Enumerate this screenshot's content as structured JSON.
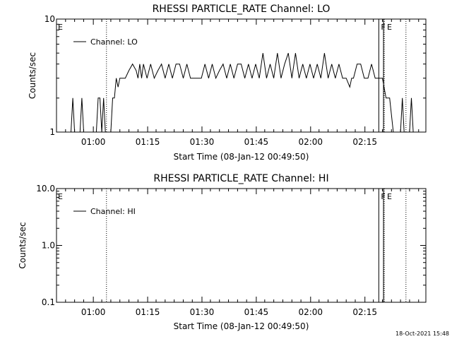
{
  "chart_data": [
    {
      "type": "line",
      "title": "RHESSI PARTICLE_RATE Channel: LO",
      "xlabel": "Start Time (08-Jan-12 00:49:50)",
      "ylabel": "Counts/sec",
      "yscale": "log",
      "ylim": [
        1,
        10
      ],
      "xlim_minutes_since_0049_50": [
        0,
        102
      ],
      "ytick_labels": [
        "1",
        "10"
      ],
      "xtick_labels": [
        "01:00",
        "01:15",
        "01:30",
        "01:45",
        "02:00",
        "02:15"
      ],
      "legend": "top-left",
      "series": [
        {
          "name": "Channel: LO",
          "color": "#000000",
          "points": [
            [
              0,
              0.9
            ],
            [
              4,
              0.9
            ],
            [
              4.5,
              2
            ],
            [
              5,
              0.9
            ],
            [
              6.5,
              0.9
            ],
            [
              7,
              2
            ],
            [
              7.5,
              0.9
            ],
            [
              11,
              0.9
            ],
            [
              11.5,
              2
            ],
            [
              12,
              2
            ],
            [
              12.5,
              0.9
            ],
            [
              13,
              2
            ],
            [
              13.5,
              0.9
            ],
            [
              15,
              0.9
            ],
            [
              15.5,
              2
            ],
            [
              16,
              2
            ],
            [
              16.5,
              3
            ],
            [
              17,
              2.5
            ],
            [
              17.5,
              3
            ],
            [
              18,
              3
            ],
            [
              19,
              3
            ],
            [
              20,
              3.5
            ],
            [
              21,
              4
            ],
            [
              22,
              3.5
            ],
            [
              22.5,
              3
            ],
            [
              23,
              4
            ],
            [
              23.5,
              3
            ],
            [
              24,
              4
            ],
            [
              25,
              3
            ],
            [
              26,
              4
            ],
            [
              27,
              3
            ],
            [
              28,
              3.5
            ],
            [
              29,
              4
            ],
            [
              30,
              3
            ],
            [
              31,
              4
            ],
            [
              32,
              3
            ],
            [
              33,
              4
            ],
            [
              34,
              4
            ],
            [
              35,
              3
            ],
            [
              36,
              4
            ],
            [
              37,
              3
            ],
            [
              38,
              3
            ],
            [
              40,
              3
            ],
            [
              41,
              4
            ],
            [
              42,
              3
            ],
            [
              43,
              4
            ],
            [
              44,
              3
            ],
            [
              45,
              3.5
            ],
            [
              46,
              4
            ],
            [
              47,
              3
            ],
            [
              48,
              4
            ],
            [
              49,
              3
            ],
            [
              50,
              4
            ],
            [
              51,
              4
            ],
            [
              52,
              3
            ],
            [
              53,
              4
            ],
            [
              54,
              3
            ],
            [
              55,
              4
            ],
            [
              56,
              3
            ],
            [
              57,
              5
            ],
            [
              58,
              3
            ],
            [
              59,
              4
            ],
            [
              60,
              3
            ],
            [
              61,
              5
            ],
            [
              62,
              3
            ],
            [
              63,
              4
            ],
            [
              64,
              5
            ],
            [
              65,
              3
            ],
            [
              66,
              5
            ],
            [
              67,
              3
            ],
            [
              68,
              4
            ],
            [
              69,
              3
            ],
            [
              70,
              4
            ],
            [
              71,
              3
            ],
            [
              72,
              4
            ],
            [
              73,
              3
            ],
            [
              74,
              5
            ],
            [
              75,
              3
            ],
            [
              76,
              4
            ],
            [
              77,
              3
            ],
            [
              78,
              4
            ],
            [
              79,
              3
            ],
            [
              80,
              3
            ],
            [
              81,
              2.5
            ],
            [
              81.5,
              3
            ],
            [
              82,
              3
            ],
            [
              83,
              4
            ],
            [
              84,
              4
            ],
            [
              85,
              3
            ],
            [
              86,
              3
            ],
            [
              87,
              4
            ],
            [
              88,
              3
            ],
            [
              89,
              3
            ],
            [
              90,
              3
            ],
            [
              91,
              2
            ],
            [
              92,
              2
            ],
            [
              93,
              0.9
            ],
            [
              95,
              0.9
            ],
            [
              95.5,
              2
            ],
            [
              96,
              0.9
            ],
            [
              97.5,
              0.9
            ],
            [
              98,
              2
            ],
            [
              98.5,
              0.9
            ],
            [
              102,
              0.9
            ]
          ]
        }
      ],
      "vertical_lines": [
        {
          "x": 13.8,
          "style": "dotted"
        },
        {
          "x": 90.5,
          "style": "dotted"
        },
        {
          "x": 96.5,
          "style": "dotted"
        },
        {
          "x": 89,
          "style": "solid"
        },
        {
          "x": 90.3,
          "style": "solid"
        }
      ],
      "flag_labels": [
        {
          "text": "E",
          "x": 0
        },
        {
          "text": "F",
          "x": 89
        },
        {
          "text": "E",
          "x": 90.7
        }
      ]
    },
    {
      "type": "line",
      "title": "RHESSI PARTICLE_RATE Channel: HI",
      "xlabel": "Start Time (08-Jan-12 00:49:50)",
      "ylabel": "Counts/sec",
      "yscale": "log",
      "ylim": [
        0.1,
        10
      ],
      "xlim_minutes_since_0049_50": [
        0,
        102
      ],
      "ytick_labels": [
        "0.1",
        "1.0",
        "10.0"
      ],
      "xtick_labels": [
        "01:00",
        "01:15",
        "01:30",
        "01:45",
        "02:00",
        "02:15"
      ],
      "legend": "top-left",
      "series": [
        {
          "name": "Channel: HI",
          "color": "#000000",
          "points": []
        }
      ],
      "vertical_lines": [
        {
          "x": 13.8,
          "style": "dotted"
        },
        {
          "x": 90.5,
          "style": "dotted"
        },
        {
          "x": 96.5,
          "style": "dotted"
        },
        {
          "x": 89,
          "style": "solid"
        },
        {
          "x": 90.3,
          "style": "solid"
        }
      ],
      "flag_labels": [
        {
          "text": "E",
          "x": 0
        },
        {
          "text": "F",
          "x": 89
        },
        {
          "text": "E",
          "x": 90.7
        }
      ]
    }
  ],
  "footer": {
    "timestamp": "18-Oct-2021 15:48"
  }
}
